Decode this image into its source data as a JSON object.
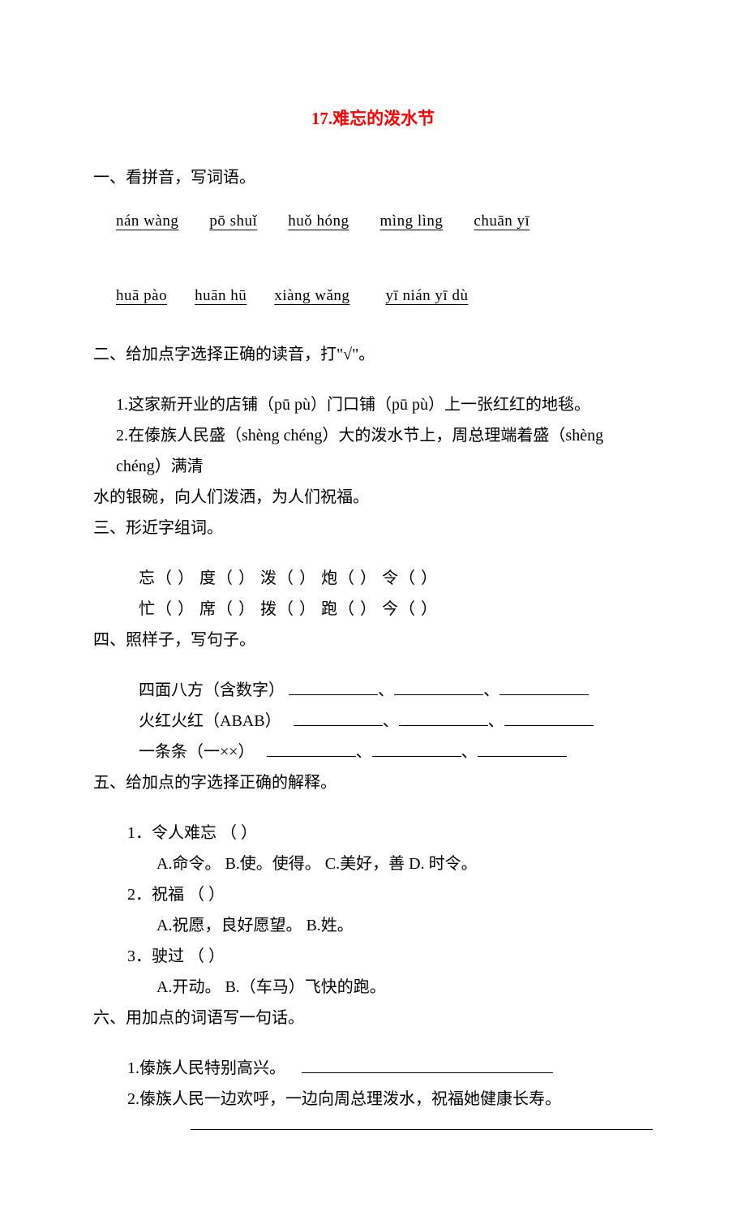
{
  "title": "17.难忘的泼水节",
  "colors": {
    "title": "#ff0000",
    "text": "#000000",
    "background": "#ffffff"
  },
  "typography": {
    "title_fontsize": 21,
    "body_fontsize": 20,
    "font_family": "SimSun"
  },
  "section1": {
    "heading": "一、看拼音，写词语。",
    "row1": [
      "nán wàng",
      "pō shuǐ",
      "huǒ hóng",
      "mìng lìng",
      "chuān yī"
    ],
    "row2": [
      "huā pào",
      "huān hū",
      "xiàng wǎng",
      "yī nián yī dù"
    ]
  },
  "section2": {
    "heading": "二、给加点字选择正确的读音，打\"√\"。",
    "q1": "1.这家新开业的店铺（pū pù）门口铺（pū pù）上一张红红的地毯。",
    "q2a": "2.在傣族人民盛（shèng chéng）大的泼水节上，周总理端着盛（shèng chéng）满清",
    "q2b": "水的银碗，向人们泼洒，为人们祝福。"
  },
  "section3": {
    "heading": "三、形近字组词。",
    "row1": "忘（    ）  度（    ）  泼（    ）  炮（    ）  令（    ）",
    "row2": "忙（    ）  席（    ）  拨（    ）  跑（    ）  今（    ）"
  },
  "section4": {
    "heading": "四、照样子，写句子。",
    "p1": "四面八方（含数字）",
    "p2": "火红火红（ABAB）",
    "p3": "一条条（一××）",
    "sep": "、"
  },
  "section5": {
    "heading": "五、给加点的字选择正确的解释。",
    "q1": {
      "text": "1．令人难忘   （    ）",
      "options": "A.命令。  B.使。使得。  C.美好，善   D. 时令。"
    },
    "q2": {
      "text": "2．祝福    （    ）",
      "options": "A.祝愿，良好愿望。  B.姓。"
    },
    "q3": {
      "text": "3．驶过   （    ）",
      "options": "A.开动。  B.（车马）飞快的跑。"
    }
  },
  "section6": {
    "heading": "六、用加点的词语写一句话。",
    "q1": "1.傣族人民特别高兴。",
    "q2": "2.傣族人民一边欢呼，一边向周总理泼水，祝福她健康长寿。"
  }
}
